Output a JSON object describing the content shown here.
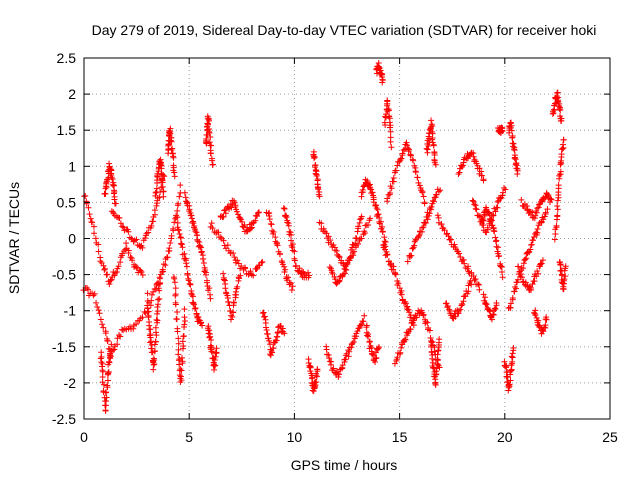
{
  "chart_data": {
    "type": "scatter",
    "title": "Day 279 of 2019, Sidereal Day-to-day VTEC variation (SDTVAR) for receiver hoki",
    "xlabel": "GPS time / hours",
    "ylabel": "SDTVAR / TECUs",
    "xlim": [
      0,
      25
    ],
    "ylim": [
      -2.5,
      2.5
    ],
    "xticks": [
      "0",
      "5",
      "10",
      "15",
      "20",
      "25"
    ],
    "yticks": [
      "-2.5",
      "-2",
      "-1.5",
      "-1",
      "-0.5",
      "0",
      "0.5",
      "1",
      "1.5",
      "2",
      "2.5"
    ],
    "grid": true,
    "marker": "plus",
    "color": "#ff0000",
    "tracks": [
      {
        "x": [
          0.0,
          0.4,
          0.8,
          1.2,
          1.6,
          2.0,
          2.4,
          2.8
        ],
        "y": [
          0.6,
          0.2,
          -0.3,
          -0.6,
          -0.4,
          -0.1,
          -0.4,
          -0.5
        ]
      },
      {
        "x": [
          0.0,
          0.5,
          1.0,
          1.3,
          1.8,
          2.4,
          3.0,
          3.4,
          3.7,
          4.0,
          4.3,
          4.6
        ],
        "y": [
          -0.7,
          -0.8,
          -1.3,
          -1.6,
          -1.3,
          -1.2,
          -1.0,
          -0.7,
          -0.5,
          -0.2,
          0.2,
          0.7
        ]
      },
      {
        "x": [
          0.8,
          0.9,
          1.0,
          1.1,
          1.2,
          1.3
        ],
        "y": [
          -1.6,
          -1.9,
          -2.4,
          -2.0,
          -1.7,
          -1.5
        ]
      },
      {
        "x": [
          1.0,
          1.1,
          1.2,
          1.3,
          1.4,
          1.5
        ],
        "y": [
          0.6,
          0.8,
          1.0,
          0.9,
          0.7,
          0.5
        ]
      },
      {
        "x": [
          1.3,
          1.8,
          2.3,
          2.8,
          3.2,
          3.5,
          3.8
        ],
        "y": [
          0.4,
          0.2,
          0.0,
          -0.1,
          0.2,
          0.5,
          0.9
        ]
      },
      {
        "x": [
          3.0,
          3.1,
          3.2,
          3.3,
          3.4,
          3.5,
          3.6
        ],
        "y": [
          -0.8,
          -1.2,
          -1.5,
          -1.8,
          -1.4,
          -1.0,
          -0.6
        ]
      },
      {
        "x": [
          3.4,
          3.5,
          3.6,
          3.7,
          3.8
        ],
        "y": [
          0.6,
          0.9,
          1.1,
          0.9,
          0.6
        ]
      },
      {
        "x": [
          4.0,
          4.05,
          4.1,
          4.2,
          4.3
        ],
        "y": [
          1.2,
          1.4,
          1.5,
          1.2,
          0.9
        ]
      },
      {
        "x": [
          4.3,
          4.4,
          4.5,
          4.6,
          4.7,
          4.8
        ],
        "y": [
          -0.5,
          -1.0,
          -1.6,
          -2.0,
          -1.5,
          -1.0
        ]
      },
      {
        "x": [
          4.4,
          4.6,
          4.8,
          5.0,
          5.2,
          5.4,
          5.6
        ],
        "y": [
          0.3,
          0.0,
          -0.3,
          -0.6,
          -0.9,
          -1.1,
          -1.2
        ]
      },
      {
        "x": [
          4.8,
          5.0,
          5.2,
          5.4,
          5.6,
          5.8,
          6.0
        ],
        "y": [
          0.6,
          0.4,
          0.2,
          0.0,
          -0.2,
          -0.5,
          -0.8
        ]
      },
      {
        "x": [
          5.8,
          5.85,
          5.9,
          6.0,
          6.1
        ],
        "y": [
          1.3,
          1.5,
          1.7,
          1.3,
          1.0
        ]
      },
      {
        "x": [
          5.9,
          6.0,
          6.1,
          6.2,
          6.3
        ],
        "y": [
          -1.2,
          -1.4,
          -1.6,
          -1.8,
          -1.5
        ]
      },
      {
        "x": [
          6.0,
          6.5,
          7.0,
          7.5,
          8.0,
          8.5
        ],
        "y": [
          0.2,
          0.0,
          -0.2,
          -0.4,
          -0.5,
          -0.3
        ]
      },
      {
        "x": [
          6.5,
          6.8,
          7.1,
          7.4,
          7.7,
          8.0,
          8.3
        ],
        "y": [
          0.3,
          0.4,
          0.5,
          0.3,
          0.1,
          0.2,
          0.4
        ]
      },
      {
        "x": [
          6.6,
          6.8,
          7.0,
          7.2,
          7.4
        ],
        "y": [
          -0.5,
          -0.8,
          -1.1,
          -0.8,
          -0.5
        ]
      },
      {
        "x": [
          8.5,
          8.7,
          8.9,
          9.1,
          9.3,
          9.5
        ],
        "y": [
          -1.0,
          -1.3,
          -1.6,
          -1.4,
          -1.2,
          -1.3
        ]
      },
      {
        "x": [
          8.7,
          9.0,
          9.3,
          9.6,
          9.9
        ],
        "y": [
          0.4,
          0.1,
          -0.2,
          -0.5,
          -0.7
        ]
      },
      {
        "x": [
          9.5,
          9.7,
          9.9,
          10.1,
          10.4,
          10.7
        ],
        "y": [
          0.4,
          0.2,
          -0.1,
          -0.4,
          -0.5,
          -0.5
        ]
      },
      {
        "x": [
          10.7,
          10.8,
          10.9,
          11.0,
          11.1
        ],
        "y": [
          -1.7,
          -1.9,
          -2.1,
          -2.0,
          -1.8
        ]
      },
      {
        "x": [
          10.9,
          11.0,
          11.1,
          11.2
        ],
        "y": [
          1.2,
          1.0,
          0.8,
          0.6
        ]
      },
      {
        "x": [
          11.2,
          11.6,
          12.0,
          12.4,
          12.8,
          13.2,
          13.6
        ],
        "y": [
          0.2,
          0.0,
          -0.2,
          -0.4,
          -0.2,
          0.0,
          0.3
        ]
      },
      {
        "x": [
          11.5,
          11.8,
          12.1,
          12.4,
          12.7,
          13.0,
          13.3
        ],
        "y": [
          -1.5,
          -1.8,
          -1.9,
          -1.7,
          -1.5,
          -1.3,
          -1.1
        ]
      },
      {
        "x": [
          11.7,
          12.0,
          12.3,
          12.6,
          12.9,
          13.2
        ],
        "y": [
          -0.4,
          -0.6,
          -0.5,
          -0.3,
          0.0,
          0.3
        ]
      },
      {
        "x": [
          13.2,
          13.4,
          13.6,
          13.8,
          14.0,
          14.2,
          14.4
        ],
        "y": [
          0.6,
          0.8,
          0.7,
          0.5,
          0.3,
          0.1,
          -0.2
        ]
      },
      {
        "x": [
          13.4,
          13.6,
          13.8,
          14.0
        ],
        "y": [
          -1.2,
          -1.5,
          -1.7,
          -1.5
        ]
      },
      {
        "x": [
          13.9,
          14.0,
          14.1,
          14.2
        ],
        "y": [
          2.3,
          2.4,
          2.3,
          2.2
        ]
      },
      {
        "x": [
          14.3,
          14.4,
          14.5,
          14.6
        ],
        "y": [
          1.6,
          1.9,
          1.7,
          1.3
        ]
      },
      {
        "x": [
          14.2,
          14.5,
          14.8,
          15.1,
          15.4,
          15.7
        ],
        "y": [
          -0.1,
          -0.3,
          -0.5,
          -0.8,
          -1.0,
          -1.2
        ]
      },
      {
        "x": [
          14.4,
          14.7,
          15.0,
          15.3,
          15.6,
          15.9,
          16.2
        ],
        "y": [
          0.5,
          0.8,
          1.1,
          1.3,
          1.1,
          0.8,
          0.5
        ]
      },
      {
        "x": [
          14.8,
          15.1,
          15.4,
          15.7,
          16.0,
          16.3,
          16.6,
          16.9
        ],
        "y": [
          -1.7,
          -1.5,
          -1.3,
          -1.1,
          -1.0,
          -1.2,
          -1.5,
          -1.8
        ]
      },
      {
        "x": [
          15.4,
          15.7,
          16.0,
          16.3,
          16.6,
          16.9
        ],
        "y": [
          -0.3,
          -0.1,
          0.1,
          0.3,
          0.5,
          0.7
        ]
      },
      {
        "x": [
          16.3,
          16.4,
          16.5,
          16.6,
          16.7
        ],
        "y": [
          1.2,
          1.4,
          1.6,
          1.3,
          1.0
        ]
      },
      {
        "x": [
          16.5,
          16.6,
          16.7,
          16.8,
          16.9
        ],
        "y": [
          -1.5,
          -1.8,
          -2.0,
          -1.7,
          -1.4
        ]
      },
      {
        "x": [
          16.8,
          17.2,
          17.6,
          18.0,
          18.4,
          18.8
        ],
        "y": [
          0.3,
          0.1,
          -0.1,
          -0.3,
          -0.5,
          -0.7
        ]
      },
      {
        "x": [
          17.2,
          17.5,
          17.8,
          18.1,
          18.4
        ],
        "y": [
          -0.9,
          -1.1,
          -1.0,
          -0.8,
          -0.6
        ]
      },
      {
        "x": [
          17.8,
          18.1,
          18.4,
          18.7,
          19.0
        ],
        "y": [
          0.9,
          1.1,
          1.2,
          1.0,
          0.8
        ]
      },
      {
        "x": [
          18.5,
          18.8,
          19.1,
          19.4,
          19.7,
          20.0
        ],
        "y": [
          0.5,
          0.3,
          0.1,
          0.3,
          0.5,
          0.7
        ]
      },
      {
        "x": [
          18.9,
          19.1,
          19.3,
          19.5,
          19.7,
          19.9
        ],
        "y": [
          0.2,
          0.4,
          0.3,
          0.1,
          -0.2,
          -0.5
        ]
      },
      {
        "x": [
          19.0,
          19.2,
          19.4,
          19.6
        ],
        "y": [
          -0.8,
          -1.0,
          -1.1,
          -0.9
        ]
      },
      {
        "x": [
          19.7,
          19.8,
          19.9
        ],
        "y": [
          1.5,
          1.5,
          1.5
        ]
      },
      {
        "x": [
          20.0,
          20.1,
          20.2,
          20.3,
          20.4
        ],
        "y": [
          -1.7,
          -1.9,
          -2.1,
          -1.8,
          -1.5
        ]
      },
      {
        "x": [
          20.2,
          20.3,
          20.4,
          20.5,
          20.6
        ],
        "y": [
          1.5,
          1.6,
          1.3,
          1.1,
          0.9
        ]
      },
      {
        "x": [
          20.2,
          20.5,
          20.8,
          21.1,
          21.4,
          21.7,
          22.0
        ],
        "y": [
          -1.0,
          -0.7,
          -0.4,
          -0.2,
          0.0,
          0.2,
          0.4
        ]
      },
      {
        "x": [
          20.6,
          20.9,
          21.2,
          21.5,
          21.8
        ],
        "y": [
          -0.4,
          -0.6,
          -0.7,
          -0.5,
          -0.3
        ]
      },
      {
        "x": [
          20.8,
          21.1,
          21.4,
          21.7,
          22.0,
          22.2
        ],
        "y": [
          0.5,
          0.4,
          0.3,
          0.5,
          0.6,
          0.5
        ]
      },
      {
        "x": [
          21.4,
          21.6,
          21.8,
          22.0
        ],
        "y": [
          -1.0,
          -1.2,
          -1.3,
          -1.1
        ]
      },
      {
        "x": [
          22.3,
          22.4,
          22.5,
          22.6,
          22.7
        ],
        "y": [
          1.7,
          1.9,
          2.0,
          1.8,
          1.6
        ]
      },
      {
        "x": [
          22.4,
          22.5,
          22.6,
          22.7,
          22.8
        ],
        "y": [
          0.0,
          0.4,
          0.8,
          1.1,
          1.4
        ]
      },
      {
        "x": [
          22.6,
          22.7,
          22.8,
          22.9
        ],
        "y": [
          -0.3,
          -0.5,
          -0.7,
          -0.4
        ]
      }
    ]
  }
}
